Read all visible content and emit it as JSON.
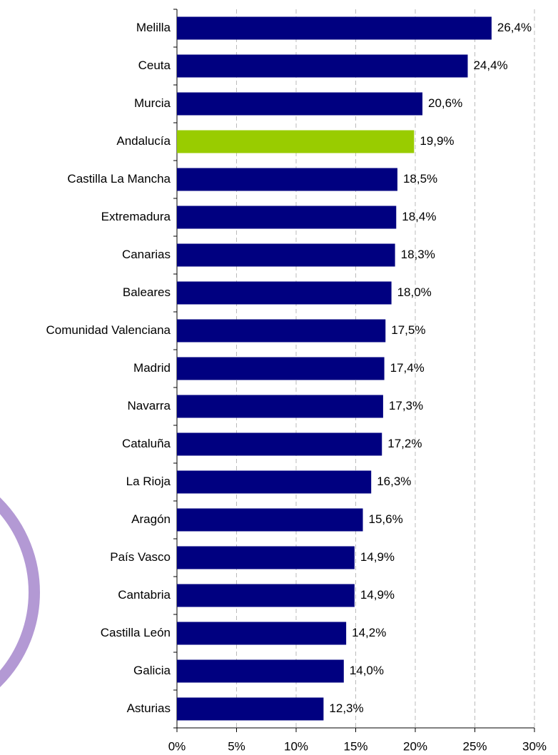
{
  "chart_data": {
    "type": "barh",
    "categories": [
      "Melilla",
      "Ceuta",
      "Murcia",
      "Andalucía",
      "Castilla La Mancha",
      "Extremadura",
      "Canarias",
      "Baleares",
      "Comunidad Valenciana",
      "Madrid",
      "Navarra",
      "Cataluña",
      "La Rioja",
      "Aragón",
      "País Vasco",
      "Cantabria",
      "Castilla León",
      "Galicia",
      "Asturias"
    ],
    "values": [
      26.4,
      24.4,
      20.6,
      19.9,
      18.5,
      18.4,
      18.3,
      18.0,
      17.5,
      17.4,
      17.3,
      17.2,
      16.3,
      15.6,
      14.9,
      14.9,
      14.2,
      14.0,
      12.3
    ],
    "value_labels": [
      "26,4%",
      "24,4%",
      "20,6%",
      "19,9%",
      "18,5%",
      "18,4%",
      "18,3%",
      "18,0%",
      "17,5%",
      "17,4%",
      "17,3%",
      "17,2%",
      "16,3%",
      "15,6%",
      "14,9%",
      "14,9%",
      "14,2%",
      "14,0%",
      "12,3%"
    ],
    "colors": [
      "#000080",
      "#000080",
      "#000080",
      "#99cc00",
      "#000080",
      "#000080",
      "#000080",
      "#000080",
      "#000080",
      "#000080",
      "#000080",
      "#000080",
      "#000080",
      "#000080",
      "#000080",
      "#000080",
      "#000080",
      "#000080",
      "#000080"
    ],
    "xlim": [
      0,
      30
    ],
    "xticks": [
      {
        "value": 0,
        "label": "0%"
      },
      {
        "value": 5,
        "label": "5%"
      },
      {
        "value": 10,
        "label": "10%"
      },
      {
        "value": 15,
        "label": "15%"
      },
      {
        "value": 20,
        "label": "20%"
      },
      {
        "value": 25,
        "label": "25%"
      },
      {
        "value": 30,
        "label": "30%"
      }
    ],
    "grid": true
  }
}
